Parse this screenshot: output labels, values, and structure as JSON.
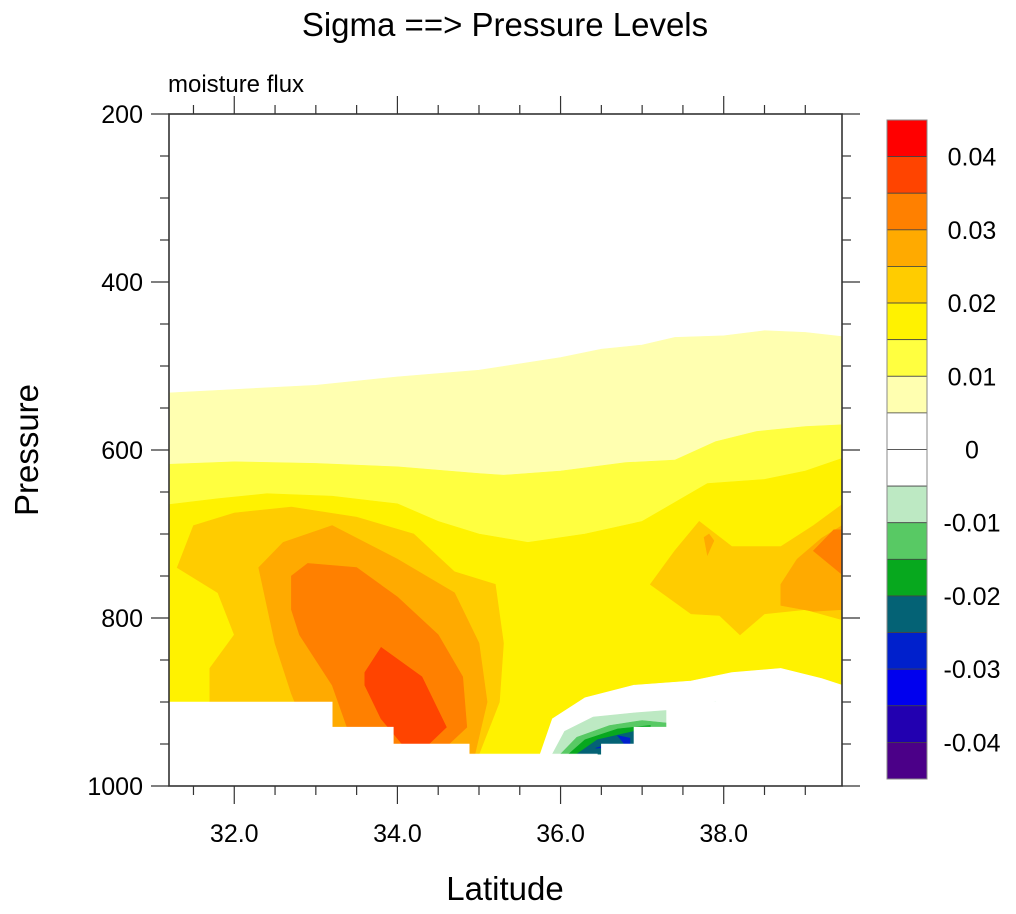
{
  "chart_data": {
    "type": "heatmap",
    "subtype": "filled-contour",
    "title": "Sigma ==> Pressure Levels",
    "left_string": "moisture flux",
    "xlabel": "Latitude",
    "ylabel": "Pressure",
    "xlim": [
      31.2,
      39.45
    ],
    "ylim": [
      1000,
      200
    ],
    "y_axis_reversed": true,
    "x_ticks": [
      32.0,
      34.0,
      36.0,
      38.0
    ],
    "x_tick_labels": [
      "32.0",
      "34.0",
      "36.0",
      "38.0"
    ],
    "x_minor_step": 0.5,
    "y_ticks": [
      200,
      400,
      600,
      800,
      1000
    ],
    "y_tick_labels": [
      "200",
      "400",
      "600",
      "800",
      "1000"
    ],
    "y_minor_step": 50,
    "grid": false,
    "colorbar": {
      "placement": "right",
      "labels": [
        "0.04",
        "0.03",
        "0.02",
        "0.01",
        "0",
        "-0.01",
        "-0.02",
        "-0.03",
        "-0.04"
      ],
      "levels": [
        0.045,
        0.04,
        0.035,
        0.03,
        0.025,
        0.02,
        0.015,
        0.01,
        0.005,
        0,
        -0.005,
        -0.01,
        -0.015,
        -0.02,
        -0.025,
        -0.03,
        -0.035,
        -0.04,
        -0.045
      ],
      "colors": [
        "#ff0000",
        "#ff4400",
        "#ff8000",
        "#ffaa00",
        "#ffcc00",
        "#fff200",
        "#ffff40",
        "#ffffb0",
        "#ffffff",
        "#ffffff",
        "#bde9c3",
        "#58c964",
        "#07a81e",
        "#046275",
        "#0020cc",
        "#0000ee",
        "#2200b0",
        "#4b0088"
      ]
    },
    "regions": [
      {
        "name": "band-0.005-0.01",
        "value_range": [
          0.005,
          0.01
        ],
        "color": "#ffffb0",
        "points": [
          [
            31.2,
            532
          ],
          [
            32.0,
            528
          ],
          [
            33.0,
            523
          ],
          [
            34.0,
            513
          ],
          [
            35.0,
            505
          ],
          [
            36.0,
            490
          ],
          [
            36.5,
            480
          ],
          [
            37.0,
            475
          ],
          [
            37.4,
            466
          ],
          [
            38.0,
            464
          ],
          [
            38.5,
            458
          ],
          [
            39.0,
            460
          ],
          [
            39.45,
            465
          ],
          [
            39.45,
            1000
          ],
          [
            31.2,
            1000
          ]
        ]
      },
      {
        "name": "band-0.01-0.015",
        "value_range": [
          0.01,
          0.015
        ],
        "color": "#ffff40",
        "points": [
          [
            31.2,
            617
          ],
          [
            32.0,
            614
          ],
          [
            33.0,
            616
          ],
          [
            34.0,
            620
          ],
          [
            35.0,
            628
          ],
          [
            35.3,
            630
          ],
          [
            36.0,
            625
          ],
          [
            36.8,
            615
          ],
          [
            37.4,
            612
          ],
          [
            37.9,
            590
          ],
          [
            38.4,
            578
          ],
          [
            39.0,
            572
          ],
          [
            39.45,
            570
          ],
          [
            39.45,
            1000
          ],
          [
            31.2,
            1000
          ]
        ]
      },
      {
        "name": "band-0.015-0.02",
        "value_range": [
          0.015,
          0.02
        ],
        "color": "#fff200",
        "points": [
          [
            31.2,
            665
          ],
          [
            31.8,
            658
          ],
          [
            32.4,
            652
          ],
          [
            33.2,
            655
          ],
          [
            34.0,
            664
          ],
          [
            34.5,
            685
          ],
          [
            35.0,
            700
          ],
          [
            35.6,
            710
          ],
          [
            36.3,
            700
          ],
          [
            37.0,
            685
          ],
          [
            37.8,
            640
          ],
          [
            38.5,
            635
          ],
          [
            39.0,
            625
          ],
          [
            39.45,
            610
          ],
          [
            39.45,
            1000
          ],
          [
            31.2,
            1000
          ]
        ]
      },
      {
        "name": "band-0.02-0.025-west",
        "value_range": [
          0.02,
          0.025
        ],
        "color": "#ffcc00",
        "points": [
          [
            31.3,
            740
          ],
          [
            31.5,
            690
          ],
          [
            32.0,
            675
          ],
          [
            32.7,
            668
          ],
          [
            33.5,
            680
          ],
          [
            34.2,
            700
          ],
          [
            34.7,
            745
          ],
          [
            35.2,
            760
          ],
          [
            35.3,
            830
          ],
          [
            35.25,
            900
          ],
          [
            35.0,
            962
          ],
          [
            31.7,
            962
          ],
          [
            31.7,
            860
          ],
          [
            32.0,
            820
          ],
          [
            31.8,
            770
          ]
        ]
      },
      {
        "name": "band-0.025-0.03-west",
        "value_range": [
          0.025,
          0.03
        ],
        "color": "#ffaa00",
        "points": [
          [
            32.3,
            740
          ],
          [
            32.6,
            710
          ],
          [
            33.2,
            690
          ],
          [
            34.0,
            730
          ],
          [
            34.7,
            770
          ],
          [
            35.0,
            830
          ],
          [
            35.1,
            900
          ],
          [
            34.95,
            962
          ],
          [
            33.0,
            962
          ],
          [
            32.7,
            890
          ],
          [
            32.5,
            830
          ]
        ]
      },
      {
        "name": "band-0.03-0.035-west",
        "value_range": [
          0.03,
          0.035
        ],
        "color": "#ff8000",
        "points": [
          [
            32.7,
            750
          ],
          [
            32.9,
            735
          ],
          [
            33.5,
            740
          ],
          [
            34.0,
            775
          ],
          [
            34.5,
            820
          ],
          [
            34.8,
            870
          ],
          [
            34.85,
            930
          ],
          [
            34.5,
            962
          ],
          [
            33.5,
            962
          ],
          [
            33.2,
            880
          ],
          [
            32.8,
            820
          ],
          [
            32.7,
            790
          ]
        ]
      },
      {
        "name": "band-0.035-0.04-west",
        "value_range": [
          0.035,
          0.04
        ],
        "color": "#ff4400",
        "points": [
          [
            33.6,
            865
          ],
          [
            33.8,
            835
          ],
          [
            34.3,
            870
          ],
          [
            34.6,
            930
          ],
          [
            34.3,
            958
          ],
          [
            34.1,
            955
          ],
          [
            33.8,
            920
          ],
          [
            33.6,
            880
          ]
        ]
      },
      {
        "name": "band-0.02-0.025-east",
        "value_range": [
          0.02,
          0.025
        ],
        "color": "#ffcc00",
        "points": [
          [
            37.1,
            760
          ],
          [
            37.4,
            720
          ],
          [
            37.7,
            685
          ],
          [
            38.1,
            715
          ],
          [
            38.7,
            715
          ],
          [
            39.1,
            690
          ],
          [
            39.45,
            665
          ],
          [
            39.45,
            802
          ],
          [
            39.0,
            790
          ],
          [
            38.5,
            795
          ],
          [
            38.2,
            820
          ],
          [
            37.95,
            797
          ],
          [
            37.6,
            795
          ]
        ]
      },
      {
        "name": "band-0.025-0.03-east",
        "value_range": [
          0.025,
          0.03
        ],
        "color": "#ffaa00",
        "points": [
          [
            38.7,
            760
          ],
          [
            38.9,
            730
          ],
          [
            39.2,
            705
          ],
          [
            39.45,
            690
          ],
          [
            39.45,
            790
          ],
          [
            39.1,
            792
          ],
          [
            38.7,
            785
          ]
        ]
      },
      {
        "name": "band-0.025-0.03-east-spot",
        "value_range": [
          0.025,
          0.03
        ],
        "color": "#ffaa00",
        "points": [
          [
            37.76,
            704
          ],
          [
            37.82,
            700
          ],
          [
            37.88,
            708
          ],
          [
            37.8,
            725
          ]
        ]
      },
      {
        "name": "band-0.03-0.035-east",
        "value_range": [
          0.03,
          0.035
        ],
        "color": "#ff8000",
        "points": [
          [
            39.1,
            720
          ],
          [
            39.35,
            695
          ],
          [
            39.45,
            695
          ],
          [
            39.45,
            748
          ]
        ]
      },
      {
        "name": "band-0-0.005",
        "value_range": [
          0,
          0.005
        ],
        "color": "#ffffff",
        "points": [
          [
            35.75,
            962
          ],
          [
            35.9,
            920
          ],
          [
            36.3,
            895
          ],
          [
            36.9,
            880
          ],
          [
            37.6,
            875
          ],
          [
            38.1,
            865
          ],
          [
            38.7,
            860
          ],
          [
            39.2,
            872
          ],
          [
            39.45,
            880
          ],
          [
            39.45,
            1000
          ],
          [
            35.75,
            1000
          ]
        ]
      },
      {
        "name": "band-neg0.005-neg0.01",
        "value_range": [
          -0.01,
          -0.005
        ],
        "color": "#bde9c3",
        "points": [
          [
            35.9,
            962
          ],
          [
            36.05,
            935
          ],
          [
            36.4,
            918
          ],
          [
            36.9,
            913
          ],
          [
            37.3,
            910
          ],
          [
            37.9,
            900
          ],
          [
            38.2,
            925
          ],
          [
            37.15,
            925
          ],
          [
            37.1,
            962
          ]
        ]
      },
      {
        "name": "band-neg0.01-neg0.015",
        "value_range": [
          -0.015,
          -0.01
        ],
        "color": "#58c964",
        "points": [
          [
            36.0,
            962
          ],
          [
            36.2,
            942
          ],
          [
            36.6,
            928
          ],
          [
            37.0,
            922
          ],
          [
            37.3,
            925
          ],
          [
            37.35,
            932
          ],
          [
            37.1,
            945
          ],
          [
            36.9,
            962
          ]
        ]
      },
      {
        "name": "band-neg0.015-neg0.02",
        "value_range": [
          -0.02,
          -0.015
        ],
        "color": "#07a81e",
        "points": [
          [
            36.1,
            962
          ],
          [
            36.3,
            945
          ],
          [
            36.7,
            932
          ],
          [
            37.1,
            928
          ],
          [
            37.1,
            945
          ],
          [
            36.8,
            952
          ],
          [
            36.6,
            962
          ]
        ]
      },
      {
        "name": "band-neg0.02-neg0.025",
        "value_range": [
          -0.025,
          -0.02
        ],
        "color": "#046275",
        "points": [
          [
            36.2,
            962
          ],
          [
            36.45,
            945
          ],
          [
            36.9,
            935
          ],
          [
            36.9,
            952
          ],
          [
            36.5,
            962
          ]
        ]
      },
      {
        "name": "band-neg0.025-neg0.03",
        "value_range": [
          -0.03,
          -0.025
        ],
        "color": "#0020cc",
        "points": [
          [
            36.43,
            955
          ],
          [
            36.6,
            950
          ],
          [
            36.85,
            952
          ],
          [
            36.85,
            943
          ],
          [
            36.7,
            940
          ],
          [
            36.8,
            952
          ]
        ]
      },
      {
        "name": "missing-below-terrain",
        "value_range": null,
        "color": "#ffffff",
        "points": [
          [
            31.2,
            900
          ],
          [
            33.2,
            900
          ],
          [
            33.2,
            930
          ],
          [
            33.95,
            930
          ],
          [
            33.95,
            950
          ],
          [
            34.88,
            950
          ],
          [
            34.88,
            962
          ],
          [
            36.45,
            962
          ],
          [
            36.45,
            1000
          ],
          [
            31.2,
            1000
          ]
        ]
      },
      {
        "name": "missing-below-terrain-east",
        "value_range": null,
        "color": "#ffffff",
        "points": [
          [
            36.5,
            962
          ],
          [
            36.5,
            950
          ],
          [
            36.9,
            950
          ],
          [
            36.9,
            930
          ],
          [
            37.3,
            930
          ],
          [
            37.3,
            900
          ],
          [
            39.45,
            900
          ],
          [
            39.45,
            1000
          ],
          [
            36.5,
            1000
          ]
        ]
      }
    ]
  }
}
